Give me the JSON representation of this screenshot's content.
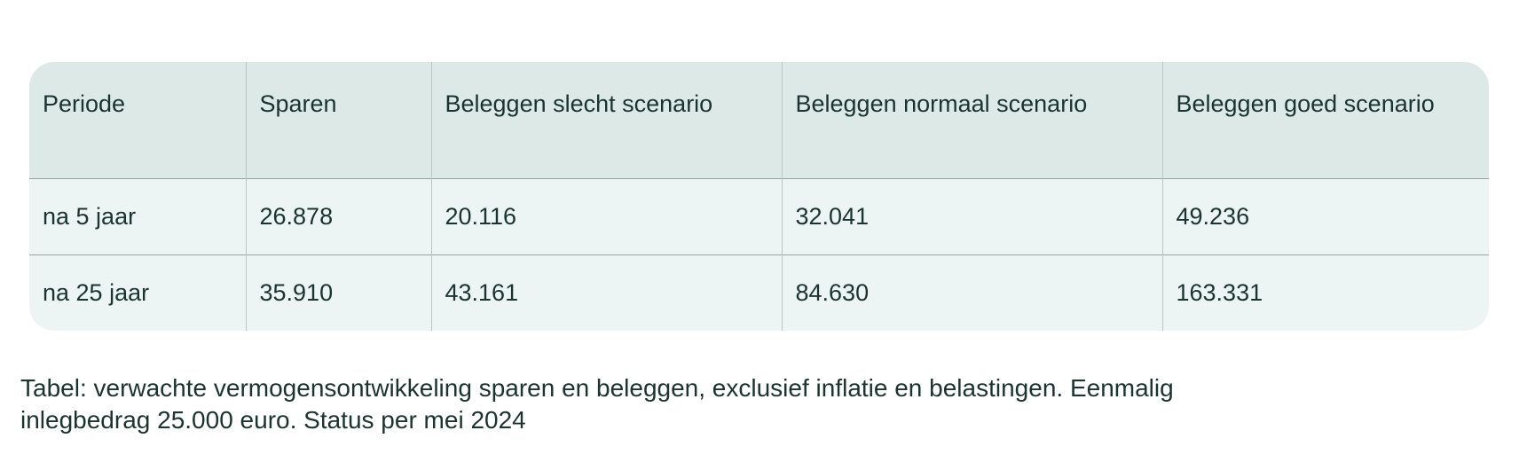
{
  "table": {
    "columns": [
      "Periode",
      "Sparen",
      "Beleggen slecht scenario",
      "Beleggen normaal scenario",
      "Beleggen goed scenario"
    ],
    "rows": [
      {
        "cells": [
          "na 5 jaar",
          "26.878",
          "20.116",
          "32.041",
          "49.236"
        ]
      },
      {
        "cells": [
          "na 25 jaar",
          "35.910",
          "43.161",
          "84.630",
          "163.331"
        ]
      }
    ]
  },
  "caption": {
    "lines": [
      "Tabel: verwachte vermogensontwikkeling sparen en beleggen, exclusief inflatie en belastingen. Eenmalig",
      "inlegbedrag 25.000 euro. Status per mei 2024"
    ]
  },
  "colors": {
    "header_background": "#dde9e7",
    "row_background": "#ecf5f3",
    "text": "#1a342f",
    "divider_vertical": "#bac8c5",
    "divider_horizontal": "#97a5a2",
    "page_background": "#ffffff"
  }
}
